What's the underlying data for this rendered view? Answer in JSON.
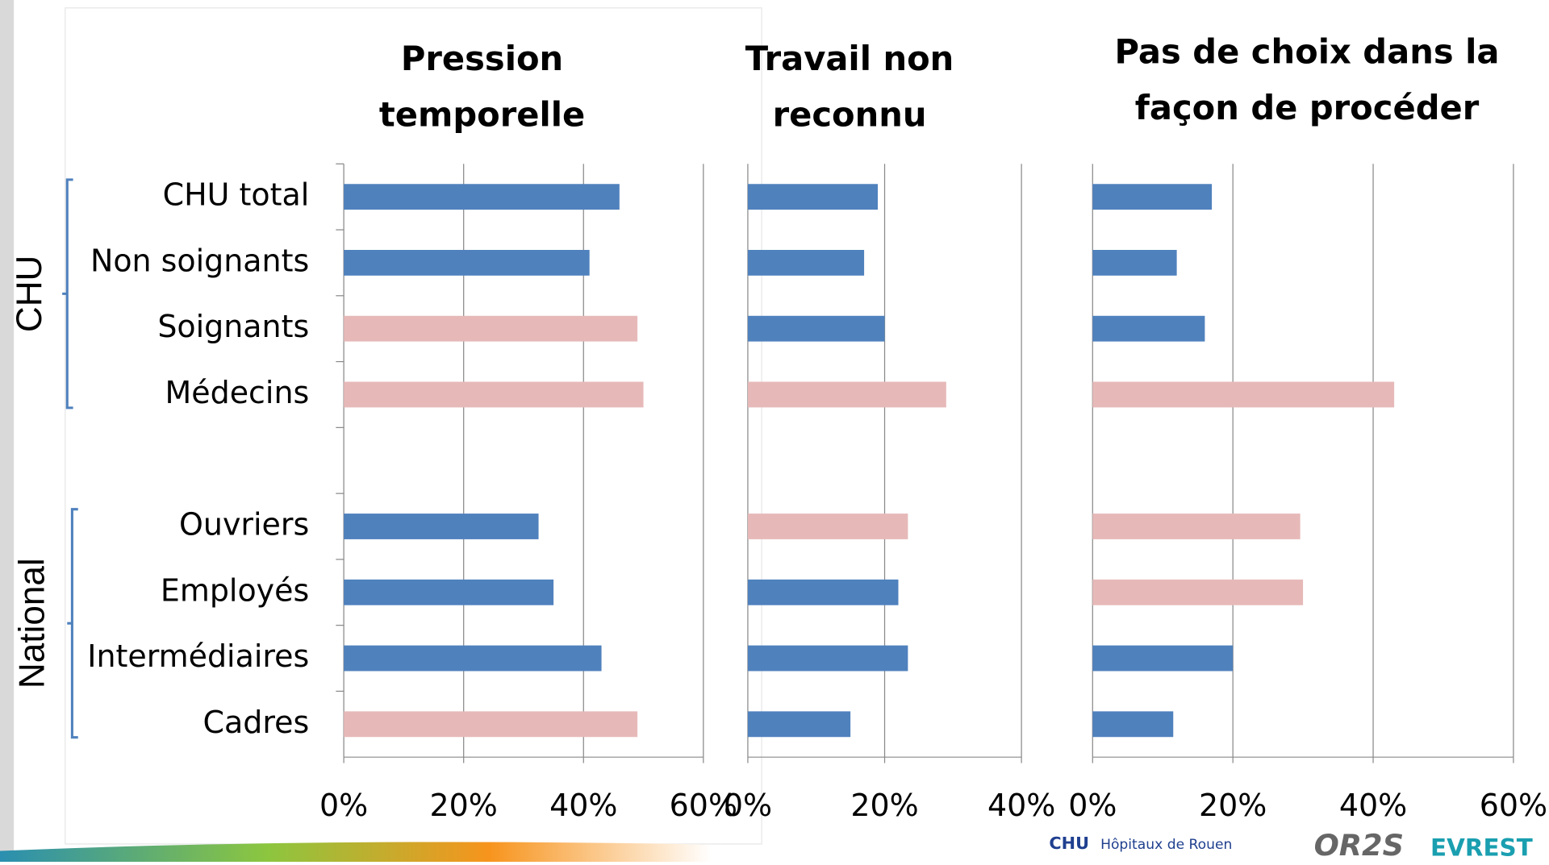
{
  "chart_data": [
    {
      "type": "bar",
      "orientation": "horizontal",
      "title": [
        "Pression",
        "temporelle"
      ],
      "categories": [
        "CHU total",
        "Non soignants",
        "Soignants",
        "Médecins",
        null,
        "Ouvriers",
        "Employés",
        "Intermédiaires",
        "Cadres"
      ],
      "groups": [
        {
          "label": "CHU",
          "from": 0,
          "to": 3
        },
        {
          "label": "National",
          "from": 5,
          "to": 8
        }
      ],
      "values": [
        46,
        41,
        49,
        50,
        null,
        32.5,
        35,
        43,
        49
      ],
      "colors": [
        "#4f81bd",
        "#4f81bd",
        "#e6b9b8",
        "#e6b9b8",
        null,
        "#4f81bd",
        "#4f81bd",
        "#4f81bd",
        "#e6b9b8"
      ],
      "xlim": [
        0,
        60
      ],
      "xticks": [
        {
          "value": 0,
          "label": "0%"
        },
        {
          "value": 20,
          "label": "20%"
        },
        {
          "value": 40,
          "label": "40%"
        },
        {
          "value": 60,
          "label": "60%"
        }
      ],
      "grid": true
    },
    {
      "type": "bar",
      "orientation": "horizontal",
      "title": [
        "Travail non",
        "reconnu"
      ],
      "values": [
        19,
        17,
        20,
        29,
        null,
        23.4,
        22,
        23.4,
        15
      ],
      "colors": [
        "#4f81bd",
        "#4f81bd",
        "#4f81bd",
        "#e6b9b8",
        null,
        "#e6b9b8",
        "#4f81bd",
        "#4f81bd",
        "#4f81bd"
      ],
      "xlim": [
        0,
        40
      ],
      "xticks": [
        {
          "value": 0,
          "label": "0%"
        },
        {
          "value": 20,
          "label": "20%"
        },
        {
          "value": 40,
          "label": "40%"
        }
      ],
      "grid": true
    },
    {
      "type": "bar",
      "orientation": "horizontal",
      "title": [
        "Pas de choix dans la",
        "façon de procéder"
      ],
      "values": [
        17,
        12,
        16,
        43,
        null,
        29.6,
        30,
        20,
        11.5
      ],
      "colors": [
        "#4f81bd",
        "#4f81bd",
        "#4f81bd",
        "#e6b9b8",
        null,
        "#e6b9b8",
        "#e6b9b8",
        "#4f81bd",
        "#4f81bd"
      ],
      "xlim": [
        0,
        60
      ],
      "xticks": [
        {
          "value": 0,
          "label": "0%"
        },
        {
          "value": 20,
          "label": "20%"
        },
        {
          "value": 40,
          "label": "40%"
        },
        {
          "value": 60,
          "label": "60%"
        }
      ],
      "grid": true
    }
  ],
  "footer": {
    "logo_chu": "CHU",
    "logo_chu_sub": "Hôpitaux de Rouen",
    "logo_or2s": "OR2S",
    "logo_evrest": "EVREST"
  }
}
